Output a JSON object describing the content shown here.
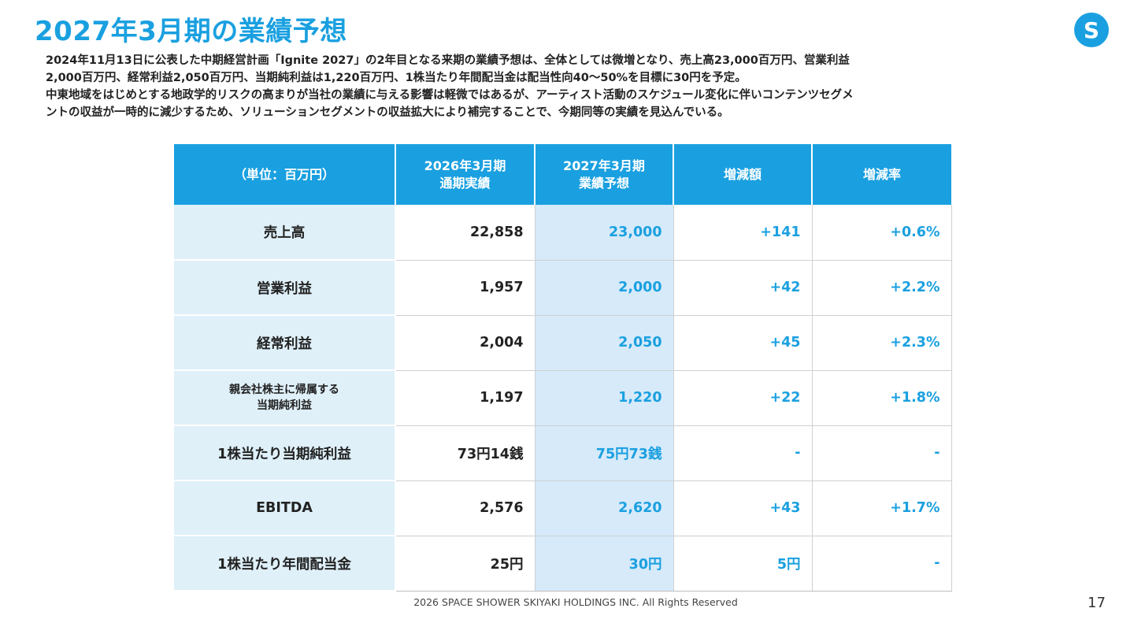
{
  "title": "2027年3月期の業績予想",
  "logo_letter": "S",
  "lead_lines": [
    "2024年11月13日に公表した中期経営計画「Ignite 2027」の2年目となる来期の業績予想は、全体としては微増となり、売上高23,000百万円、営業利益",
    "2,000百万円、経常利益2,050百万円、当期純利益は1,220百万円、1株当たり年間配当金は配当性向40〜50%を目標に30円を予定。",
    "中東地域をはじめとする地政学的リスクの高まりが当社の業績に与える影響は軽微ではあるが、アーティスト活動のスケジュール変化に伴いコンテンツセグメ",
    "ントの収益が一時的に減少するため、ソリューションセグメントの収益拡大により補完することで、今期同等の実績を見込んでいる。"
  ],
  "table": {
    "header": {
      "unit": "（単位：百万円）",
      "col1_line1": "2026年3月期",
      "col1_line2": "通期実績",
      "col2_line1": "2027年3月期",
      "col2_line2": "業績予想",
      "col3": "増減額",
      "col4": "増減率"
    },
    "rows": [
      {
        "label": "売上高",
        "actual": "22,858",
        "forecast": "23,000",
        "change": "+141",
        "rate": "+0.6%"
      },
      {
        "label": "営業利益",
        "actual": "1,957",
        "forecast": "2,000",
        "change": "+42",
        "rate": "+2.2%"
      },
      {
        "label": "経常利益",
        "actual": "2,004",
        "forecast": "2,050",
        "change": "+45",
        "rate": "+2.3%"
      },
      {
        "label_line1": "親会社株主に帰属する",
        "label_line2": "当期純利益",
        "actual": "1,197",
        "forecast": "1,220",
        "change": "+22",
        "rate": "+1.8%"
      },
      {
        "label": "1株当たり当期純利益",
        "actual": "73円14銭",
        "forecast": "75円73銭",
        "change": "-",
        "rate": "-"
      },
      {
        "label": "EBITDA",
        "actual": "2,576",
        "forecast": "2,620",
        "change": "+43",
        "rate": "+1.7%"
      },
      {
        "label": "1株当たり年間配当金",
        "actual": "25円",
        "forecast": "30円",
        "change": "5円",
        "rate": "-"
      }
    ]
  },
  "footer": "2026 SPACE SHOWER SKIYAKI HOLDINGS INC. All Rights Reserved",
  "page_number": "17",
  "colors": {
    "accent": "#1aa0e0",
    "label_bg": "#dff0f9",
    "forecast_bg": "#d6eafa"
  }
}
